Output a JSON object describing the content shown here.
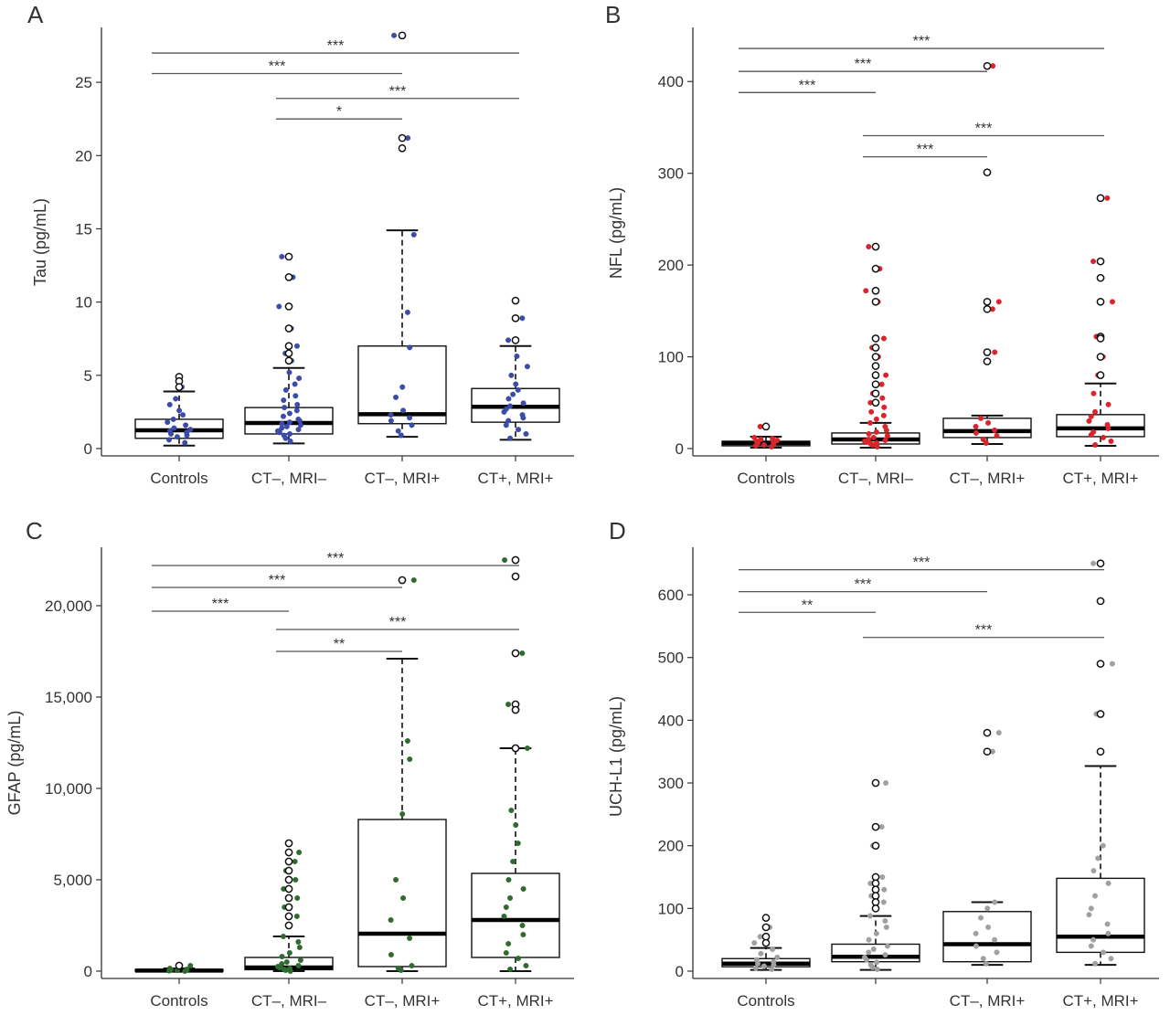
{
  "chart_data": [
    {
      "type": "box",
      "panel": "A",
      "ylabel": "Tau (pg/mL)",
      "ylim": [
        0,
        28.5
      ],
      "yticks": [
        0,
        5,
        10,
        15,
        20,
        25
      ],
      "ytick_labels": [
        "0",
        "5",
        "10",
        "15",
        "20",
        "25"
      ],
      "categories": [
        "Controls",
        "CT–, MRI–",
        "CT–, MRI+",
        "CT+, MRI+"
      ],
      "point_color": "#3b4ba8",
      "boxes": [
        {
          "q1": 0.7,
          "median": 1.25,
          "q3": 2.0,
          "whisker_low": 0.2,
          "whisker_high": 3.9
        },
        {
          "q1": 1.0,
          "median": 1.75,
          "q3": 2.8,
          "whisker_low": 0.35,
          "whisker_high": 5.5
        },
        {
          "q1": 1.7,
          "median": 2.35,
          "q3": 7.0,
          "whisker_low": 0.8,
          "whisker_high": 14.9
        },
        {
          "q1": 1.8,
          "median": 2.85,
          "q3": 4.1,
          "whisker_low": 0.6,
          "whisker_high": 7.0
        }
      ],
      "outliers": [
        [
          4.9,
          4.6,
          4.2
        ],
        [
          13.1,
          11.7,
          9.7,
          8.2,
          7.0,
          6.5,
          6.0
        ],
        [
          28.2,
          21.2,
          20.5
        ],
        [
          10.1,
          8.9,
          7.4
        ]
      ],
      "points": [
        [
          0.4,
          0.6,
          0.8,
          0.9,
          1.0,
          1.1,
          1.2,
          1.3,
          1.4,
          1.6,
          1.8,
          2.0,
          2.3,
          2.6,
          3.0,
          3.4,
          4.2,
          4.6,
          4.9
        ],
        [
          0.5,
          0.7,
          0.9,
          1.0,
          1.1,
          1.2,
          1.3,
          1.4,
          1.5,
          1.6,
          1.7,
          1.8,
          1.9,
          2.0,
          2.2,
          2.4,
          2.6,
          2.8,
          3.0,
          3.3,
          3.6,
          4.0,
          4.4,
          4.8,
          5.2,
          6.0,
          6.5,
          7.0,
          8.2,
          9.7,
          11.7,
          13.1
        ],
        [
          0.9,
          1.2,
          1.6,
          1.9,
          2.1,
          2.3,
          2.6,
          3.5,
          4.2,
          6.9,
          9.3,
          14.6,
          20.5,
          21.2,
          28.2
        ],
        [
          0.7,
          1.0,
          1.3,
          1.6,
          1.9,
          2.1,
          2.3,
          2.5,
          2.7,
          2.9,
          3.1,
          3.4,
          3.7,
          4.0,
          4.4,
          5.0,
          5.6,
          6.3,
          7.4,
          8.9,
          10.1
        ]
      ],
      "comparisons": [
        {
          "from": 0,
          "to": 3,
          "y": 27.0,
          "label": "***"
        },
        {
          "from": 0,
          "to": 2,
          "y": 25.6,
          "label": "***"
        },
        {
          "from": 1,
          "to": 3,
          "y": 23.9,
          "label": "***"
        },
        {
          "from": 1,
          "to": 2,
          "y": 22.5,
          "label": "*"
        }
      ]
    },
    {
      "type": "box",
      "panel": "B",
      "ylabel": "NFL (pg/mL)",
      "ylim": [
        0,
        455
      ],
      "yticks": [
        0,
        100,
        200,
        300,
        400
      ],
      "ytick_labels": [
        "0",
        "100",
        "200",
        "300",
        "400"
      ],
      "categories": [
        "Controls",
        "CT–, MRI–",
        "CT–, MRI+",
        "CT+, MRI+"
      ],
      "point_color": "#d9242b",
      "boxes": [
        {
          "q1": 3,
          "median": 6,
          "q3": 8,
          "whisker_low": 1,
          "whisker_high": 13
        },
        {
          "q1": 5,
          "median": 10,
          "q3": 17,
          "whisker_low": 1,
          "whisker_high": 28
        },
        {
          "q1": 12,
          "median": 19,
          "q3": 33,
          "whisker_low": 5,
          "whisker_high": 36
        },
        {
          "q1": 13,
          "median": 22,
          "q3": 37,
          "whisker_low": 3,
          "whisker_high": 71
        }
      ],
      "outliers": [
        [
          24
        ],
        [
          220,
          196,
          172,
          160,
          120,
          110,
          100,
          90,
          80,
          70,
          60,
          50
        ],
        [
          417,
          301,
          160,
          152,
          105,
          95
        ],
        [
          273,
          204,
          186,
          160,
          122,
          120,
          100,
          80
        ]
      ],
      "points": [
        [
          2,
          3,
          4,
          5,
          6,
          7,
          8,
          9,
          10,
          11,
          12,
          24
        ],
        [
          2,
          4,
          5,
          6,
          7,
          8,
          9,
          10,
          12,
          14,
          16,
          18,
          20,
          24,
          28,
          32,
          36,
          40,
          45,
          50,
          55,
          60,
          70,
          80,
          90,
          100,
          110,
          120,
          160,
          172,
          196,
          220
        ],
        [
          6,
          10,
          14,
          17,
          20,
          24,
          28,
          33,
          95,
          105,
          152,
          160,
          301,
          417
        ],
        [
          4,
          8,
          12,
          15,
          18,
          22,
          26,
          30,
          35,
          40,
          48,
          60,
          80,
          100,
          120,
          122,
          160,
          186,
          204,
          273
        ]
      ],
      "comparisons": [
        {
          "from": 0,
          "to": 3,
          "y": 436,
          "label": "***"
        },
        {
          "from": 0,
          "to": 2,
          "y": 411,
          "label": "***"
        },
        {
          "from": 0,
          "to": 1,
          "y": 388,
          "label": "***"
        },
        {
          "from": 1,
          "to": 3,
          "y": 341,
          "label": "***"
        },
        {
          "from": 1,
          "to": 2,
          "y": 318,
          "label": "***"
        }
      ]
    },
    {
      "type": "box",
      "panel": "C",
      "ylabel": "GFAP (pg/mL)",
      "ylim": [
        0,
        23000
      ],
      "yticks": [
        0,
        5000,
        10000,
        15000,
        20000
      ],
      "ytick_labels": [
        "0",
        "5,000",
        "10,000",
        "15,000",
        "20,000"
      ],
      "categories": [
        "Controls",
        "CT–, MRI–",
        "CT–, MRI+",
        "CT+, MRI+"
      ],
      "point_color": "#2e6b2e",
      "boxes": [
        {
          "q1": 0,
          "median": 30,
          "q3": 80,
          "whisker_low": 0,
          "whisker_high": 150
        },
        {
          "q1": 80,
          "median": 200,
          "q3": 750,
          "whisker_low": 0,
          "whisker_high": 1900
        },
        {
          "q1": 250,
          "median": 2050,
          "q3": 8300,
          "whisker_low": 0,
          "whisker_high": 17100
        },
        {
          "q1": 750,
          "median": 2800,
          "q3": 5350,
          "whisker_low": 0,
          "whisker_high": 12200
        }
      ],
      "outliers": [
        [
          300
        ],
        [
          7000,
          6500,
          6000,
          5500,
          5000,
          4500,
          4000,
          3500,
          3000,
          2500
        ],
        [
          21400
        ],
        [
          22500,
          21600,
          17400,
          14600,
          14300,
          12200
        ]
      ],
      "points": [
        [
          0,
          20,
          40,
          60,
          80,
          100,
          150,
          300
        ],
        [
          0,
          50,
          100,
          150,
          200,
          250,
          300,
          400,
          500,
          600,
          800,
          1000,
          1300,
          1600,
          1900,
          2500,
          3000,
          3500,
          4000,
          4500,
          5000,
          5500,
          6000,
          6500,
          7000
        ],
        [
          50,
          150,
          300,
          900,
          1800,
          2800,
          4000,
          5000,
          8600,
          11600,
          12600,
          21400
        ],
        [
          100,
          300,
          700,
          1000,
          1500,
          2000,
          2500,
          3000,
          3500,
          4000,
          4500,
          5000,
          6000,
          7000,
          8000,
          8800,
          12200,
          14300,
          14600,
          17400,
          21600,
          22500
        ]
      ],
      "comparisons": [
        {
          "from": 0,
          "to": 3,
          "y": 22200,
          "label": "***"
        },
        {
          "from": 0,
          "to": 2,
          "y": 21000,
          "label": "***"
        },
        {
          "from": 0,
          "to": 1,
          "y": 19700,
          "label": "***"
        },
        {
          "from": 1,
          "to": 3,
          "y": 18700,
          "label": "***"
        },
        {
          "from": 1,
          "to": 2,
          "y": 17500,
          "label": "**"
        }
      ]
    },
    {
      "type": "box",
      "panel": "D",
      "ylabel": "UCH-L1 (pg/mL)",
      "ylim": [
        0,
        670
      ],
      "yticks": [
        0,
        100,
        200,
        300,
        400,
        500,
        600
      ],
      "ytick_labels": [
        "0",
        "100",
        "200",
        "300",
        "400",
        "500",
        "600"
      ],
      "categories": [
        "Controls",
        "",
        "CT–, MRI+",
        "CT+, MRI+"
      ],
      "point_color": "#a0a0a0",
      "boxes": [
        {
          "q1": 7,
          "median": 12,
          "q3": 20,
          "whisker_low": 2,
          "whisker_high": 37
        },
        {
          "q1": 15,
          "median": 23,
          "q3": 43,
          "whisker_low": 2,
          "whisker_high": 88
        },
        {
          "q1": 15,
          "median": 43,
          "q3": 95,
          "whisker_low": 10,
          "whisker_high": 110
        },
        {
          "q1": 30,
          "median": 55,
          "q3": 148,
          "whisker_low": 10,
          "whisker_high": 327
        }
      ],
      "outliers": [
        [
          85,
          70,
          55,
          45
        ],
        [
          300,
          230,
          200,
          150,
          140,
          130,
          120,
          110,
          100
        ],
        [
          380,
          350
        ],
        [
          650,
          590,
          490,
          410,
          350
        ]
      ],
      "points": [
        [
          3,
          5,
          8,
          10,
          12,
          15,
          18,
          22,
          28,
          35,
          45,
          55,
          70,
          85
        ],
        [
          3,
          6,
          10,
          14,
          18,
          22,
          26,
          30,
          35,
          40,
          50,
          60,
          70,
          80,
          88,
          100,
          110,
          120,
          130,
          140,
          150,
          200,
          230,
          300
        ],
        [
          12,
          20,
          30,
          40,
          50,
          60,
          70,
          85,
          100,
          110,
          350,
          380
        ],
        [
          12,
          20,
          30,
          40,
          50,
          60,
          75,
          90,
          100,
          120,
          140,
          160,
          180,
          200,
          350,
          410,
          490,
          590,
          650
        ]
      ],
      "comparisons": [
        {
          "from": 0,
          "to": 3,
          "y": 640,
          "label": "***"
        },
        {
          "from": 0,
          "to": 2,
          "y": 605,
          "label": "***"
        },
        {
          "from": 0,
          "to": 1,
          "y": 572,
          "label": "**"
        },
        {
          "from": 1,
          "to": 3,
          "y": 532,
          "label": "***"
        }
      ]
    }
  ]
}
